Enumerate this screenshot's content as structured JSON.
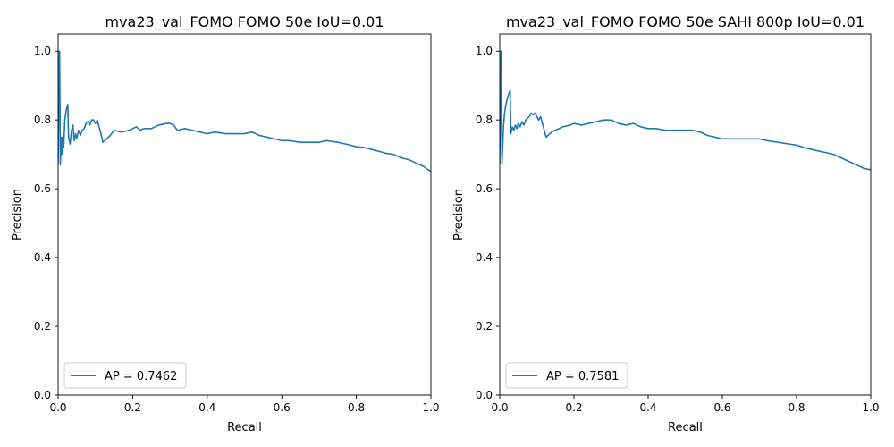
{
  "chart_data": [
    {
      "type": "line",
      "title": "mva23_val_FOMO FOMO 50e IoU=0.01",
      "xlabel": "Recall",
      "ylabel": "Precision",
      "xlim": [
        0.0,
        1.0
      ],
      "ylim": [
        0.0,
        1.05
      ],
      "xticks": [
        "0.0",
        "0.2",
        "0.4",
        "0.6",
        "0.8",
        "1.0"
      ],
      "yticks": [
        "0.0",
        "0.2",
        "0.4",
        "0.6",
        "0.8",
        "1.0"
      ],
      "grid": false,
      "legend_position": "lower-left",
      "series": [
        {
          "name": "AP = 0.7462",
          "color": "#1f77b4",
          "x": [
            0.0,
            0.003,
            0.004,
            0.006,
            0.008,
            0.01,
            0.012,
            0.015,
            0.018,
            0.022,
            0.026,
            0.028,
            0.032,
            0.036,
            0.04,
            0.043,
            0.047,
            0.05,
            0.055,
            0.06,
            0.065,
            0.07,
            0.075,
            0.08,
            0.085,
            0.09,
            0.095,
            0.1,
            0.105,
            0.11,
            0.115,
            0.12,
            0.13,
            0.14,
            0.15,
            0.17,
            0.19,
            0.2,
            0.21,
            0.22,
            0.23,
            0.25,
            0.27,
            0.29,
            0.3,
            0.31,
            0.32,
            0.34,
            0.36,
            0.38,
            0.4,
            0.42,
            0.45,
            0.48,
            0.5,
            0.52,
            0.54,
            0.56,
            0.58,
            0.6,
            0.62,
            0.65,
            0.68,
            0.7,
            0.72,
            0.75,
            0.78,
            0.8,
            0.82,
            0.85,
            0.88,
            0.9,
            0.92,
            0.94,
            0.96,
            0.98,
            1.0
          ],
          "y": [
            0.67,
            1.0,
            1.0,
            0.67,
            0.75,
            0.7,
            0.75,
            0.72,
            0.8,
            0.83,
            0.845,
            0.75,
            0.73,
            0.77,
            0.785,
            0.74,
            0.76,
            0.745,
            0.77,
            0.755,
            0.77,
            0.775,
            0.79,
            0.795,
            0.785,
            0.8,
            0.8,
            0.79,
            0.8,
            0.78,
            0.76,
            0.735,
            0.745,
            0.755,
            0.77,
            0.765,
            0.77,
            0.775,
            0.78,
            0.77,
            0.775,
            0.775,
            0.785,
            0.79,
            0.79,
            0.785,
            0.77,
            0.775,
            0.77,
            0.765,
            0.76,
            0.765,
            0.76,
            0.76,
            0.76,
            0.765,
            0.755,
            0.75,
            0.745,
            0.74,
            0.74,
            0.735,
            0.735,
            0.735,
            0.74,
            0.735,
            0.728,
            0.722,
            0.72,
            0.712,
            0.703,
            0.7,
            0.69,
            0.685,
            0.675,
            0.665,
            0.65
          ]
        }
      ]
    },
    {
      "type": "line",
      "title": "mva23_val_FOMO FOMO 50e SAHI 800p IoU=0.01",
      "xlabel": "Recall",
      "ylabel": "Precision",
      "xlim": [
        0.0,
        1.0
      ],
      "ylim": [
        0.0,
        1.05
      ],
      "xticks": [
        "0.0",
        "0.2",
        "0.4",
        "0.6",
        "0.8",
        "1.0"
      ],
      "yticks": [
        "0.0",
        "0.2",
        "0.4",
        "0.6",
        "0.8",
        "1.0"
      ],
      "grid": false,
      "legend_position": "lower-left",
      "series": [
        {
          "name": "AP = 0.7581",
          "color": "#1f77b4",
          "x": [
            0.0,
            0.003,
            0.004,
            0.006,
            0.008,
            0.01,
            0.013,
            0.016,
            0.02,
            0.024,
            0.028,
            0.03,
            0.034,
            0.038,
            0.042,
            0.046,
            0.05,
            0.055,
            0.06,
            0.065,
            0.07,
            0.075,
            0.08,
            0.085,
            0.09,
            0.095,
            0.1,
            0.105,
            0.11,
            0.115,
            0.12,
            0.125,
            0.13,
            0.14,
            0.15,
            0.17,
            0.19,
            0.2,
            0.22,
            0.24,
            0.26,
            0.28,
            0.3,
            0.32,
            0.34,
            0.36,
            0.38,
            0.4,
            0.42,
            0.45,
            0.48,
            0.5,
            0.52,
            0.54,
            0.56,
            0.58,
            0.6,
            0.63,
            0.66,
            0.68,
            0.7,
            0.72,
            0.75,
            0.78,
            0.8,
            0.82,
            0.85,
            0.88,
            0.9,
            0.92,
            0.94,
            0.96,
            0.98,
            1.0
          ],
          "y": [
            0.67,
            1.0,
            1.0,
            0.67,
            0.72,
            0.78,
            0.82,
            0.84,
            0.86,
            0.875,
            0.885,
            0.76,
            0.78,
            0.77,
            0.785,
            0.775,
            0.79,
            0.78,
            0.795,
            0.785,
            0.8,
            0.805,
            0.81,
            0.82,
            0.815,
            0.82,
            0.81,
            0.8,
            0.81,
            0.79,
            0.77,
            0.75,
            0.755,
            0.765,
            0.77,
            0.78,
            0.785,
            0.79,
            0.785,
            0.79,
            0.795,
            0.8,
            0.8,
            0.79,
            0.785,
            0.79,
            0.78,
            0.775,
            0.775,
            0.77,
            0.77,
            0.77,
            0.77,
            0.765,
            0.755,
            0.75,
            0.745,
            0.745,
            0.745,
            0.745,
            0.745,
            0.74,
            0.735,
            0.73,
            0.727,
            0.72,
            0.712,
            0.705,
            0.7,
            0.69,
            0.68,
            0.67,
            0.66,
            0.655
          ]
        }
      ]
    }
  ]
}
